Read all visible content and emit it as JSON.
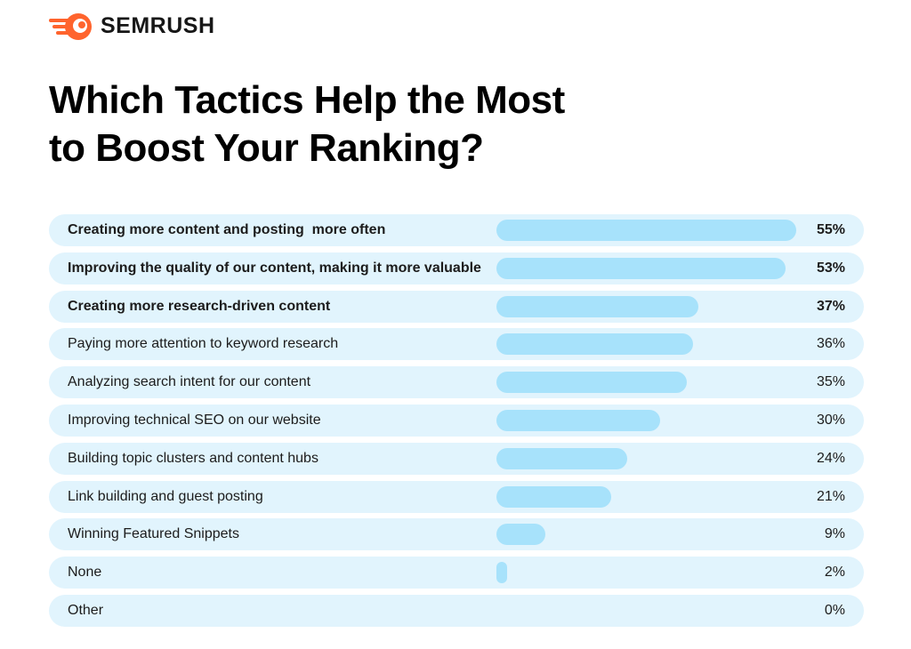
{
  "brand": {
    "name": "SEMRUSH",
    "logo_icon": "semrush-fireball-logo-icon",
    "logo_color": "#ff642d"
  },
  "title_lines": [
    "Which Tactics Help the Most",
    "to Boost Your Ranking?"
  ],
  "colors": {
    "row_background": "#e1f4fd",
    "bar": "#a7e2fb"
  },
  "chart_data": {
    "type": "bar",
    "orientation": "horizontal",
    "title": "Which Tactics Help the Most to Boost Your Ranking?",
    "categories": [
      "Creating more content and posting  more often",
      "Improving the quality of our content, making it more valuable",
      "Creating more research-driven content",
      "Paying more attention to keyword research",
      "Analyzing search intent for our content",
      "Improving technical SEO on our website",
      "Building topic clusters and content hubs",
      "Link building and guest posting",
      "Winning Featured Snippets",
      "None",
      "Other"
    ],
    "values": [
      55,
      53,
      37,
      36,
      35,
      30,
      24,
      21,
      9,
      2,
      0
    ],
    "value_labels": [
      "55%",
      "53%",
      "37%",
      "36%",
      "35%",
      "30%",
      "24%",
      "21%",
      "9%",
      "2%",
      "0%"
    ],
    "unit": "%",
    "xlim": [
      0,
      55
    ],
    "emphasized_categories": [
      0,
      1,
      2
    ],
    "grid": false,
    "legend": "none"
  }
}
